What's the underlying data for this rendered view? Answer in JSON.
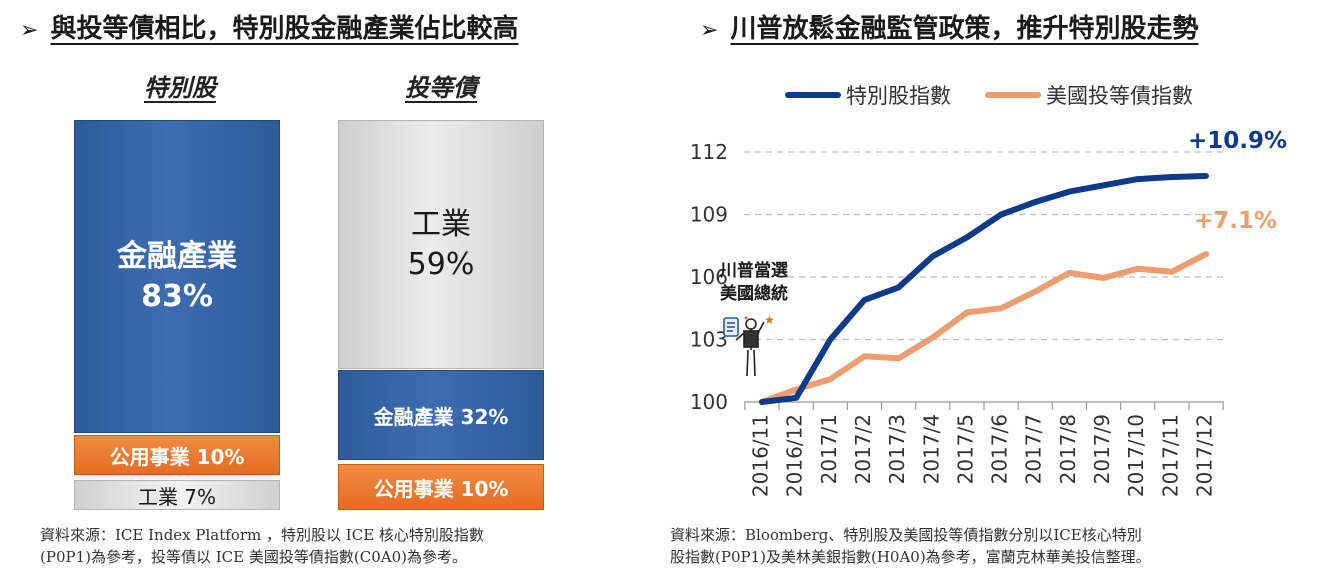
{
  "left_panel": {
    "heading": "與投等債相比，特別股金融產業佔比較高",
    "columns": [
      {
        "title": "特別股",
        "segments": [
          {
            "label": "金融產業",
            "value_text": "83%",
            "share": 83,
            "color": "blue"
          },
          {
            "label": "公用事業 10%",
            "share": 10,
            "color": "orange"
          },
          {
            "label": "工業 7%",
            "share": 7,
            "color": "gray"
          }
        ]
      },
      {
        "title": "投等債",
        "segments": [
          {
            "label": "工業",
            "value_text": "59%",
            "share": 59,
            "color": "gray"
          },
          {
            "label": "金融產業 32%",
            "share": 32,
            "color": "blue"
          },
          {
            "label": "公用事業 10%",
            "share": 10,
            "color": "orange"
          }
        ]
      }
    ],
    "source_lines": [
      "資料來源：ICE Index Platform ，特別股以 ICE 核心特別股指數",
      "(P0P1)為參考，投等債以 ICE 美國投等債指數(C0A0)為參考。"
    ]
  },
  "right_panel": {
    "heading": "川普放鬆金融監管政策，推升特別股走勢",
    "annotation_lines": [
      "川普當選",
      "美國總統"
    ],
    "source_lines": [
      "資料來源：Bloomberg、特別股及美國投等債指數分別以ICE核心特別",
      "股指數(P0P1)及美林美銀指數(H0A0)為參考，富蘭克林華美投信整理。"
    ]
  },
  "chart_data": {
    "type": "line",
    "title": "",
    "xlabel": "",
    "ylabel": "",
    "categories": [
      "2016/11",
      "2016/12",
      "2017/1",
      "2017/2",
      "2017/3",
      "2017/4",
      "2017/5",
      "2017/6",
      "2017/7",
      "2017/8",
      "2017/9",
      "2017/10",
      "2017/11",
      "2017/12"
    ],
    "ylim": [
      100,
      112
    ],
    "yticks": [
      100,
      103,
      106,
      109,
      112
    ],
    "grid": "horizontal dashed",
    "legend_position": "top",
    "series": [
      {
        "name": "特別股指數",
        "color": "#0f3a8a",
        "values": [
          100,
          100.2,
          103.0,
          104.9,
          105.5,
          107.0,
          107.9,
          109.0,
          109.6,
          110.1,
          110.4,
          110.7,
          110.8,
          110.85
        ],
        "end_label": "+10.9%"
      },
      {
        "name": "美國投等債指數",
        "color": "#ee9d71",
        "values": [
          100,
          100.6,
          101.1,
          102.2,
          102.1,
          103.1,
          104.3,
          104.5,
          105.3,
          106.2,
          105.95,
          106.4,
          106.25,
          107.1
        ],
        "end_label": "+7.1%"
      }
    ]
  }
}
